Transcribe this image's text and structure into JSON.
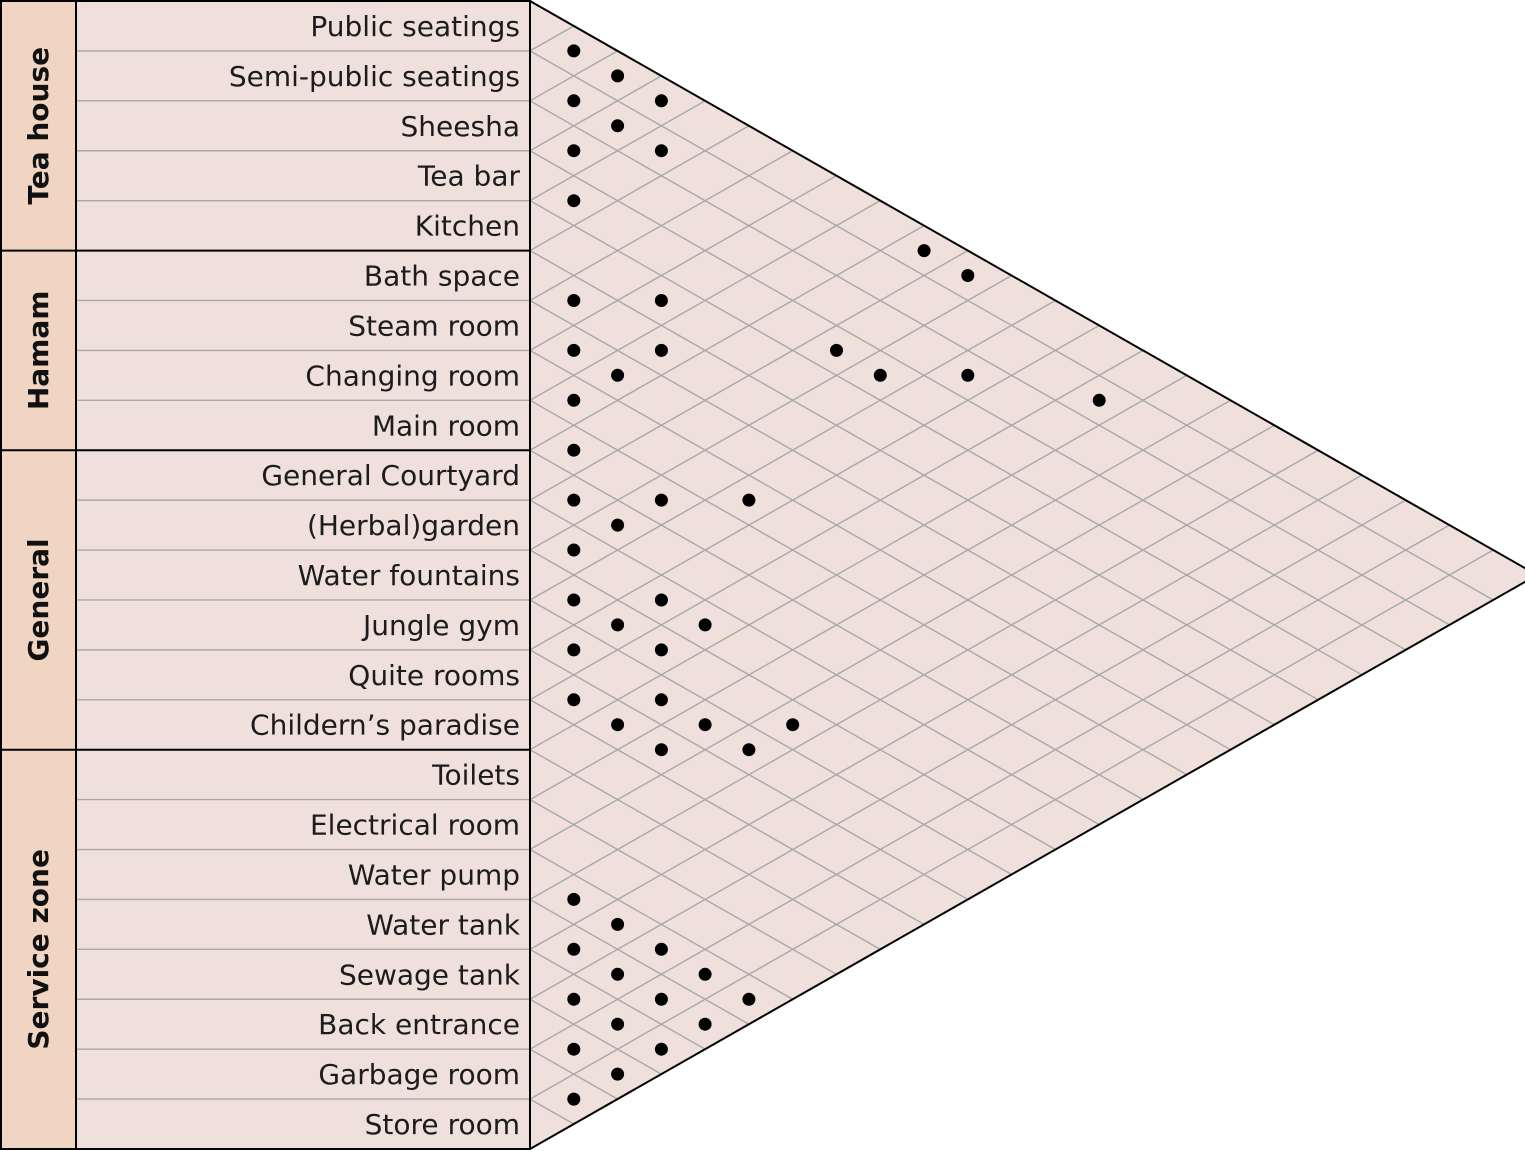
{
  "colors": {
    "label_background": "#efe0dc",
    "group_background": "#f1d5c3",
    "matrix_background": "#efe0dc",
    "grid_line": "#a8a8a8",
    "border": "#000000",
    "dot": "#000000"
  },
  "groups": [
    {
      "name": "Tea house",
      "rows": 5
    },
    {
      "name": "Hamam",
      "rows": 4
    },
    {
      "name": "General",
      "rows": 6
    },
    {
      "name": "Service zone",
      "rows": 8
    }
  ],
  "rooms": [
    "Public seatings",
    "Semi-public seatings",
    "Sheesha",
    "Tea bar",
    "Kitchen",
    "Bath space",
    "Steam room",
    "Changing room",
    "Main room",
    "General Courtyard",
    "(Herbal)garden",
    "Water fountains",
    "Jungle gym",
    "Quite rooms",
    "Childern’s paradise",
    "Toilets",
    "Electrical room",
    "Water pump",
    "Water tank",
    "Sewage tank",
    "Back entrance",
    "Garbage room",
    "Store room"
  ],
  "connections": [
    [
      1,
      2
    ],
    [
      2,
      3
    ],
    [
      1,
      3
    ],
    [
      3,
      4
    ],
    [
      2,
      4
    ],
    [
      1,
      4
    ],
    [
      4,
      5
    ],
    [
      2,
      5
    ],
    [
      1,
      11
    ],
    [
      1,
      10
    ],
    [
      6,
      7
    ],
    [
      5,
      8
    ],
    [
      7,
      8
    ],
    [
      6,
      9
    ],
    [
      4,
      11
    ],
    [
      7,
      9
    ],
    [
      8,
      9
    ],
    [
      4,
      12
    ],
    [
      3,
      13
    ],
    [
      9,
      10
    ],
    [
      10,
      11
    ],
    [
      9,
      12
    ],
    [
      8,
      13
    ],
    [
      2,
      15
    ],
    [
      10,
      12
    ],
    [
      11,
      12
    ],
    [
      12,
      13
    ],
    [
      11,
      14
    ],
    [
      12,
      14
    ],
    [
      11,
      15
    ],
    [
      12,
      15
    ],
    [
      13,
      14
    ],
    [
      14,
      15
    ],
    [
      13,
      16
    ],
    [
      14,
      16
    ],
    [
      13,
      17
    ],
    [
      12,
      18
    ],
    [
      13,
      18
    ],
    [
      14,
      17
    ],
    [
      18,
      19
    ],
    [
      19,
      20
    ],
    [
      18,
      20
    ],
    [
      20,
      21
    ],
    [
      19,
      21
    ],
    [
      18,
      21
    ],
    [
      21,
      22
    ],
    [
      20,
      22
    ],
    [
      19,
      22
    ],
    [
      18,
      22
    ],
    [
      22,
      23
    ],
    [
      21,
      23
    ],
    [
      20,
      23
    ],
    [
      19,
      23
    ],
    [
      18,
      23
    ]
  ]
}
